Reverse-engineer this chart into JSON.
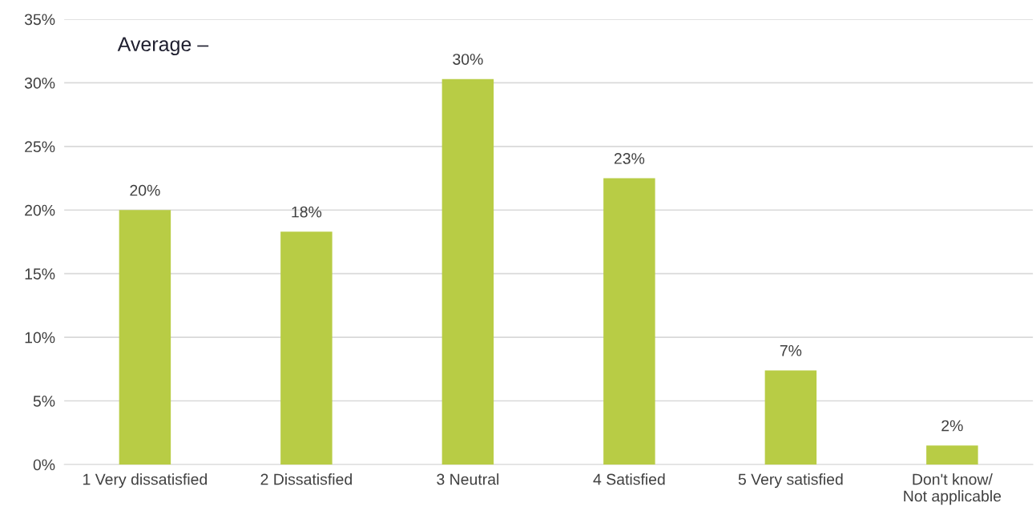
{
  "chart_data": {
    "type": "bar",
    "categories": [
      "1 Very dissatisfied",
      "2 Dissatisfied",
      "3 Neutral",
      "4 Satisfied",
      "5 Very satisfied",
      "Don't know/\nNot applicable"
    ],
    "values": [
      20.0,
      18.3,
      30.3,
      22.5,
      7.4,
      1.5
    ],
    "value_labels": [
      "20%",
      "18%",
      "30%",
      "23%",
      "7%",
      "2%"
    ],
    "color": "#b8cc45",
    "ylim": [
      0,
      35
    ],
    "yticks": [
      {
        "value": 0,
        "label": "0%"
      },
      {
        "value": 5,
        "label": "5%"
      },
      {
        "value": 10,
        "label": "10%"
      },
      {
        "value": 15,
        "label": "15%"
      },
      {
        "value": 20,
        "label": "20%"
      },
      {
        "value": 25,
        "label": "25%"
      },
      {
        "value": 30,
        "label": "30%"
      },
      {
        "value": 35,
        "label": "35%"
      }
    ],
    "grid": "y",
    "annotations": [
      "Average –"
    ]
  }
}
